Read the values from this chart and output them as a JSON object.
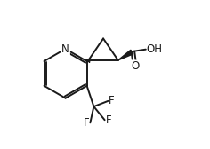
{
  "bg_color": "#ffffff",
  "line_color": "#1a1a1a",
  "line_width": 1.4,
  "font_size": 8.5,
  "figsize": [
    2.36,
    1.68
  ],
  "dpi": 100,
  "xlim": [
    0,
    10
  ],
  "ylim": [
    0,
    7.5
  ]
}
